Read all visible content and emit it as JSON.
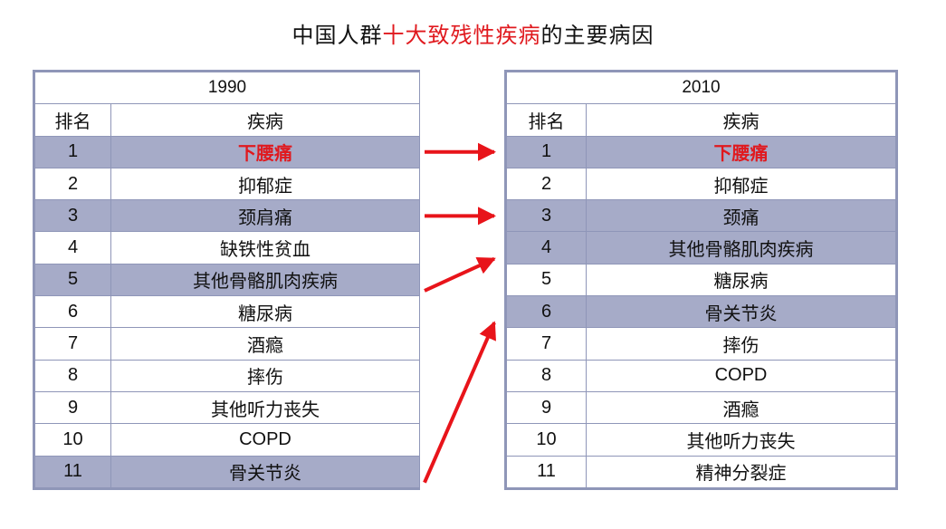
{
  "title": {
    "prefix": "中国人群",
    "highlight": "十大致残性疾病",
    "suffix": "的主要病因"
  },
  "colors": {
    "highlight_red": "#e0191e",
    "row_shade": "#a6abc8",
    "border": "#8f96b8",
    "arrow": "#e8141a"
  },
  "tables": [
    {
      "year": "1990",
      "headers": {
        "rank": "排名",
        "disease": "疾病"
      },
      "rows": [
        {
          "rank": "1",
          "disease": "下腰痛",
          "shaded": true,
          "highlight": true
        },
        {
          "rank": "2",
          "disease": "抑郁症",
          "shaded": false,
          "highlight": false
        },
        {
          "rank": "3",
          "disease": "颈肩痛",
          "shaded": true,
          "highlight": false
        },
        {
          "rank": "4",
          "disease": "缺铁性贫血",
          "shaded": false,
          "highlight": false
        },
        {
          "rank": "5",
          "disease": "其他骨骼肌肉疾病",
          "shaded": true,
          "highlight": false
        },
        {
          "rank": "6",
          "disease": "糖尿病",
          "shaded": false,
          "highlight": false
        },
        {
          "rank": "7",
          "disease": "酒瘾",
          "shaded": false,
          "highlight": false
        },
        {
          "rank": "8",
          "disease": "摔伤",
          "shaded": false,
          "highlight": false
        },
        {
          "rank": "9",
          "disease": "其他听力丧失",
          "shaded": false,
          "highlight": false
        },
        {
          "rank": "10",
          "disease": "COPD",
          "shaded": false,
          "highlight": false
        },
        {
          "rank": "11",
          "disease": "骨关节炎",
          "shaded": true,
          "highlight": false
        }
      ]
    },
    {
      "year": "2010",
      "headers": {
        "rank": "排名",
        "disease": "疾病"
      },
      "rows": [
        {
          "rank": "1",
          "disease": "下腰痛",
          "shaded": true,
          "highlight": true
        },
        {
          "rank": "2",
          "disease": "抑郁症",
          "shaded": false,
          "highlight": false
        },
        {
          "rank": "3",
          "disease": "颈痛",
          "shaded": true,
          "highlight": false
        },
        {
          "rank": "4",
          "disease": "其他骨骼肌肉疾病",
          "shaded": true,
          "highlight": false
        },
        {
          "rank": "5",
          "disease": "糖尿病",
          "shaded": false,
          "highlight": false
        },
        {
          "rank": "6",
          "disease": "骨关节炎",
          "shaded": true,
          "highlight": false
        },
        {
          "rank": "7",
          "disease": "摔伤",
          "shaded": false,
          "highlight": false
        },
        {
          "rank": "8",
          "disease": "COPD",
          "shaded": false,
          "highlight": false
        },
        {
          "rank": "9",
          "disease": "酒瘾",
          "shaded": false,
          "highlight": false
        },
        {
          "rank": "10",
          "disease": "其他听力丧失",
          "shaded": false,
          "highlight": false
        },
        {
          "rank": "11",
          "disease": "精神分裂症",
          "shaded": false,
          "highlight": false
        }
      ]
    }
  ],
  "arrows": [
    {
      "from_rank": "1",
      "to_rank": "1"
    },
    {
      "from_rank": "3",
      "to_rank": "3"
    },
    {
      "from_rank": "5",
      "to_rank": "4"
    },
    {
      "from_rank": "11",
      "to_rank": "6"
    }
  ]
}
